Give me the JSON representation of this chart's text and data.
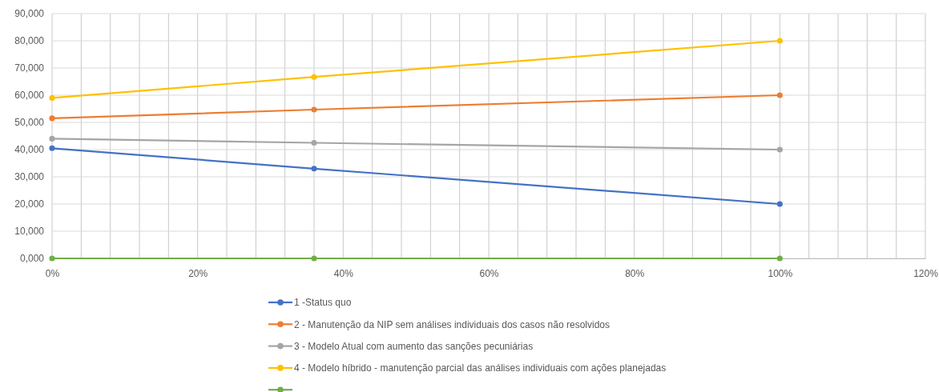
{
  "chart_data": {
    "type": "line",
    "x": [
      0,
      36,
      100
    ],
    "series": [
      {
        "name": "1 -Status quo",
        "color": "#4472c4",
        "values": [
          40500,
          33000,
          20000
        ]
      },
      {
        "name": "2 - Manutenção da NIP sem análises individuais dos casos não resolvidos",
        "color": "#ed7d31",
        "values": [
          51500,
          54700,
          60000
        ]
      },
      {
        "name": "3 - Modelo Atual com aumento das sanções pecuniárias",
        "color": "#a5a5a5",
        "values": [
          44000,
          42500,
          40000
        ]
      },
      {
        "name": "4 - Modelo híbrido - manutenção parcial das análises individuais com ações planejadas",
        "color": "#ffc000",
        "values": [
          59000,
          66700,
          80000
        ]
      },
      {
        "color": "#70ad47",
        "values": [
          0,
          0,
          0
        ]
      }
    ],
    "xlim": [
      0,
      120
    ],
    "xticks": [
      {
        "value": 0,
        "label": "0%"
      },
      {
        "value": 4,
        "label": null
      },
      {
        "value": 8,
        "label": null
      },
      {
        "value": 12,
        "label": null
      },
      {
        "value": 16,
        "label": null
      },
      {
        "value": 20,
        "label": "20%"
      },
      {
        "value": 24,
        "label": null
      },
      {
        "value": 28,
        "label": null
      },
      {
        "value": 32,
        "label": null
      },
      {
        "value": 36,
        "label": null
      },
      {
        "value": 40,
        "label": "40%"
      },
      {
        "value": 44,
        "label": null
      },
      {
        "value": 48,
        "label": null
      },
      {
        "value": 52,
        "label": null
      },
      {
        "value": 56,
        "label": null
      },
      {
        "value": 60,
        "label": "60%"
      },
      {
        "value": 64,
        "label": null
      },
      {
        "value": 68,
        "label": null
      },
      {
        "value": 72,
        "label": null
      },
      {
        "value": 76,
        "label": null
      },
      {
        "value": 80,
        "label": "80%"
      },
      {
        "value": 84,
        "label": null
      },
      {
        "value": 88,
        "label": null
      },
      {
        "value": 92,
        "label": null
      },
      {
        "value": 96,
        "label": null
      },
      {
        "value": 100,
        "label": "100%"
      },
      {
        "value": 104,
        "label": null
      },
      {
        "value": 108,
        "label": null
      },
      {
        "value": 112,
        "label": null
      },
      {
        "value": 116,
        "label": null
      },
      {
        "value": 120,
        "label": "120%"
      }
    ],
    "ylim": [
      0,
      90000
    ],
    "yticks": [
      {
        "value": 0,
        "label": "0,000"
      },
      {
        "value": 10000,
        "label": "10,000"
      },
      {
        "value": 20000,
        "label": "20,000"
      },
      {
        "value": 30000,
        "label": "30,000"
      },
      {
        "value": 40000,
        "label": "40,000"
      },
      {
        "value": 50000,
        "label": "50,000"
      },
      {
        "value": 60000,
        "label": "60,000"
      },
      {
        "value": 70000,
        "label": "70,000"
      },
      {
        "value": 80000,
        "label": "80,000"
      },
      {
        "value": 90000,
        "label": "90,000"
      }
    ],
    "grid": true,
    "legend": "bottom",
    "marker": "circle",
    "line_style": "solid"
  }
}
